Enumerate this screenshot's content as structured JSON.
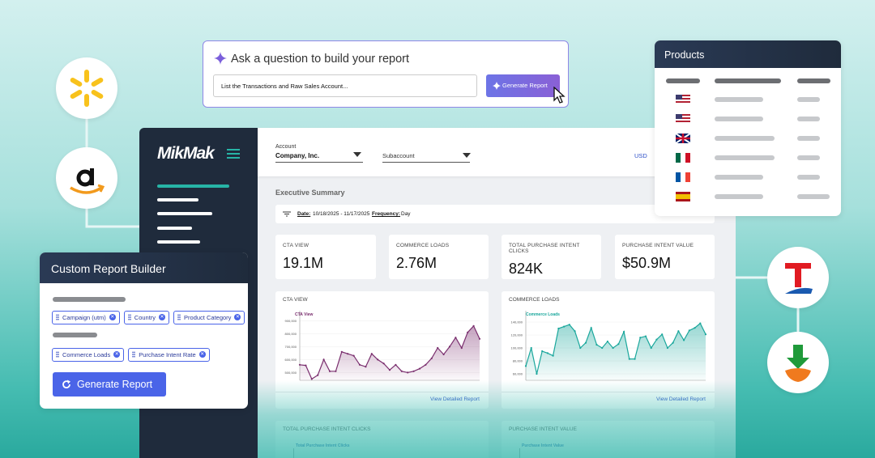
{
  "prompt": {
    "title": "Ask a question to build your report",
    "input": "List the Transactions and Raw Sales Account...",
    "button": "Generate Report"
  },
  "products": {
    "title": "Products"
  },
  "sidebar": {
    "logo": "MikMak"
  },
  "header": {
    "account_label": "Account",
    "account_value": "Company, Inc.",
    "subaccount": "Subaccount",
    "currency": "USD"
  },
  "summary": {
    "title": "Executive Summary",
    "date_label": "Date:",
    "date_value": "10/18/2025 - 11/17/2025",
    "frequency_label": "Frequency:",
    "frequency_value": "Day"
  },
  "kpis": [
    {
      "label": "CTA VIEW",
      "value": "19.1M"
    },
    {
      "label": "COMMERCE LOADS",
      "value": "2.76M"
    },
    {
      "label": "TOTAL PURCHASE INTENT CLICKS",
      "value": "824K"
    },
    {
      "label": "PURCHASE INTENT VALUE",
      "value": "$50.9M"
    }
  ],
  "charts": [
    {
      "type": "line",
      "title": "CTA VIEW",
      "link": "View Detailed Report",
      "ylim": [
        440000,
        940000
      ],
      "yticks": [
        {
          "value": 900000,
          "label": "900,000"
        },
        {
          "value": 800000,
          "label": "800,000"
        },
        {
          "value": 700000,
          "label": "700,000"
        },
        {
          "value": 600000,
          "label": "600,000"
        },
        {
          "value": 500000,
          "label": "500,000"
        }
      ],
      "series": [
        {
          "name": "CTA View",
          "color": "#7a2e6e",
          "values": [
            560000,
            555000,
            450000,
            480000,
            600000,
            510000,
            510000,
            660000,
            645000,
            630000,
            560000,
            545000,
            645000,
            600000,
            570000,
            520000,
            560000,
            510000,
            500000,
            510000,
            530000,
            560000,
            610000,
            690000,
            640000,
            700000,
            770000,
            690000,
            810000,
            860000,
            760000
          ]
        }
      ]
    },
    {
      "type": "line",
      "title": "COMMERCE LOADS",
      "link": "View Detailed Report",
      "ylim": [
        50000,
        150000
      ],
      "yticks": [
        {
          "value": 140000,
          "label": "140,000"
        },
        {
          "value": 120000,
          "label": "120,000"
        },
        {
          "value": 100000,
          "label": "100,000"
        },
        {
          "value": 80000,
          "label": "80,000"
        },
        {
          "value": 60000,
          "label": "60,000"
        }
      ],
      "series": [
        {
          "name": "Commerce Loads",
          "color": "#1aa79c",
          "values": [
            72000,
            100000,
            60000,
            95000,
            92000,
            88000,
            130000,
            133000,
            136000,
            126000,
            100000,
            108000,
            131000,
            105000,
            100000,
            110000,
            100000,
            106000,
            125000,
            83000,
            83000,
            116000,
            118000,
            100000,
            113000,
            121000,
            100000,
            108000,
            126000,
            112000,
            127000,
            131000,
            138000,
            121000
          ]
        }
      ]
    }
  ],
  "lower_cards": [
    {
      "title": "TOTAL PURCHASE INTENT CLICKS",
      "legend": "Total Purchase Intent Clicks"
    },
    {
      "title": "PURCHASE INTENT VALUE",
      "legend": "Purchase Intent Value"
    }
  ],
  "builder": {
    "title": "Custom Report Builder",
    "group_1": [
      "Campaign (utm)",
      "Country",
      "Product Category"
    ],
    "group_2": [
      "Commerce Loads",
      "Purchase Intent Rate"
    ],
    "button": "Generate Report"
  }
}
